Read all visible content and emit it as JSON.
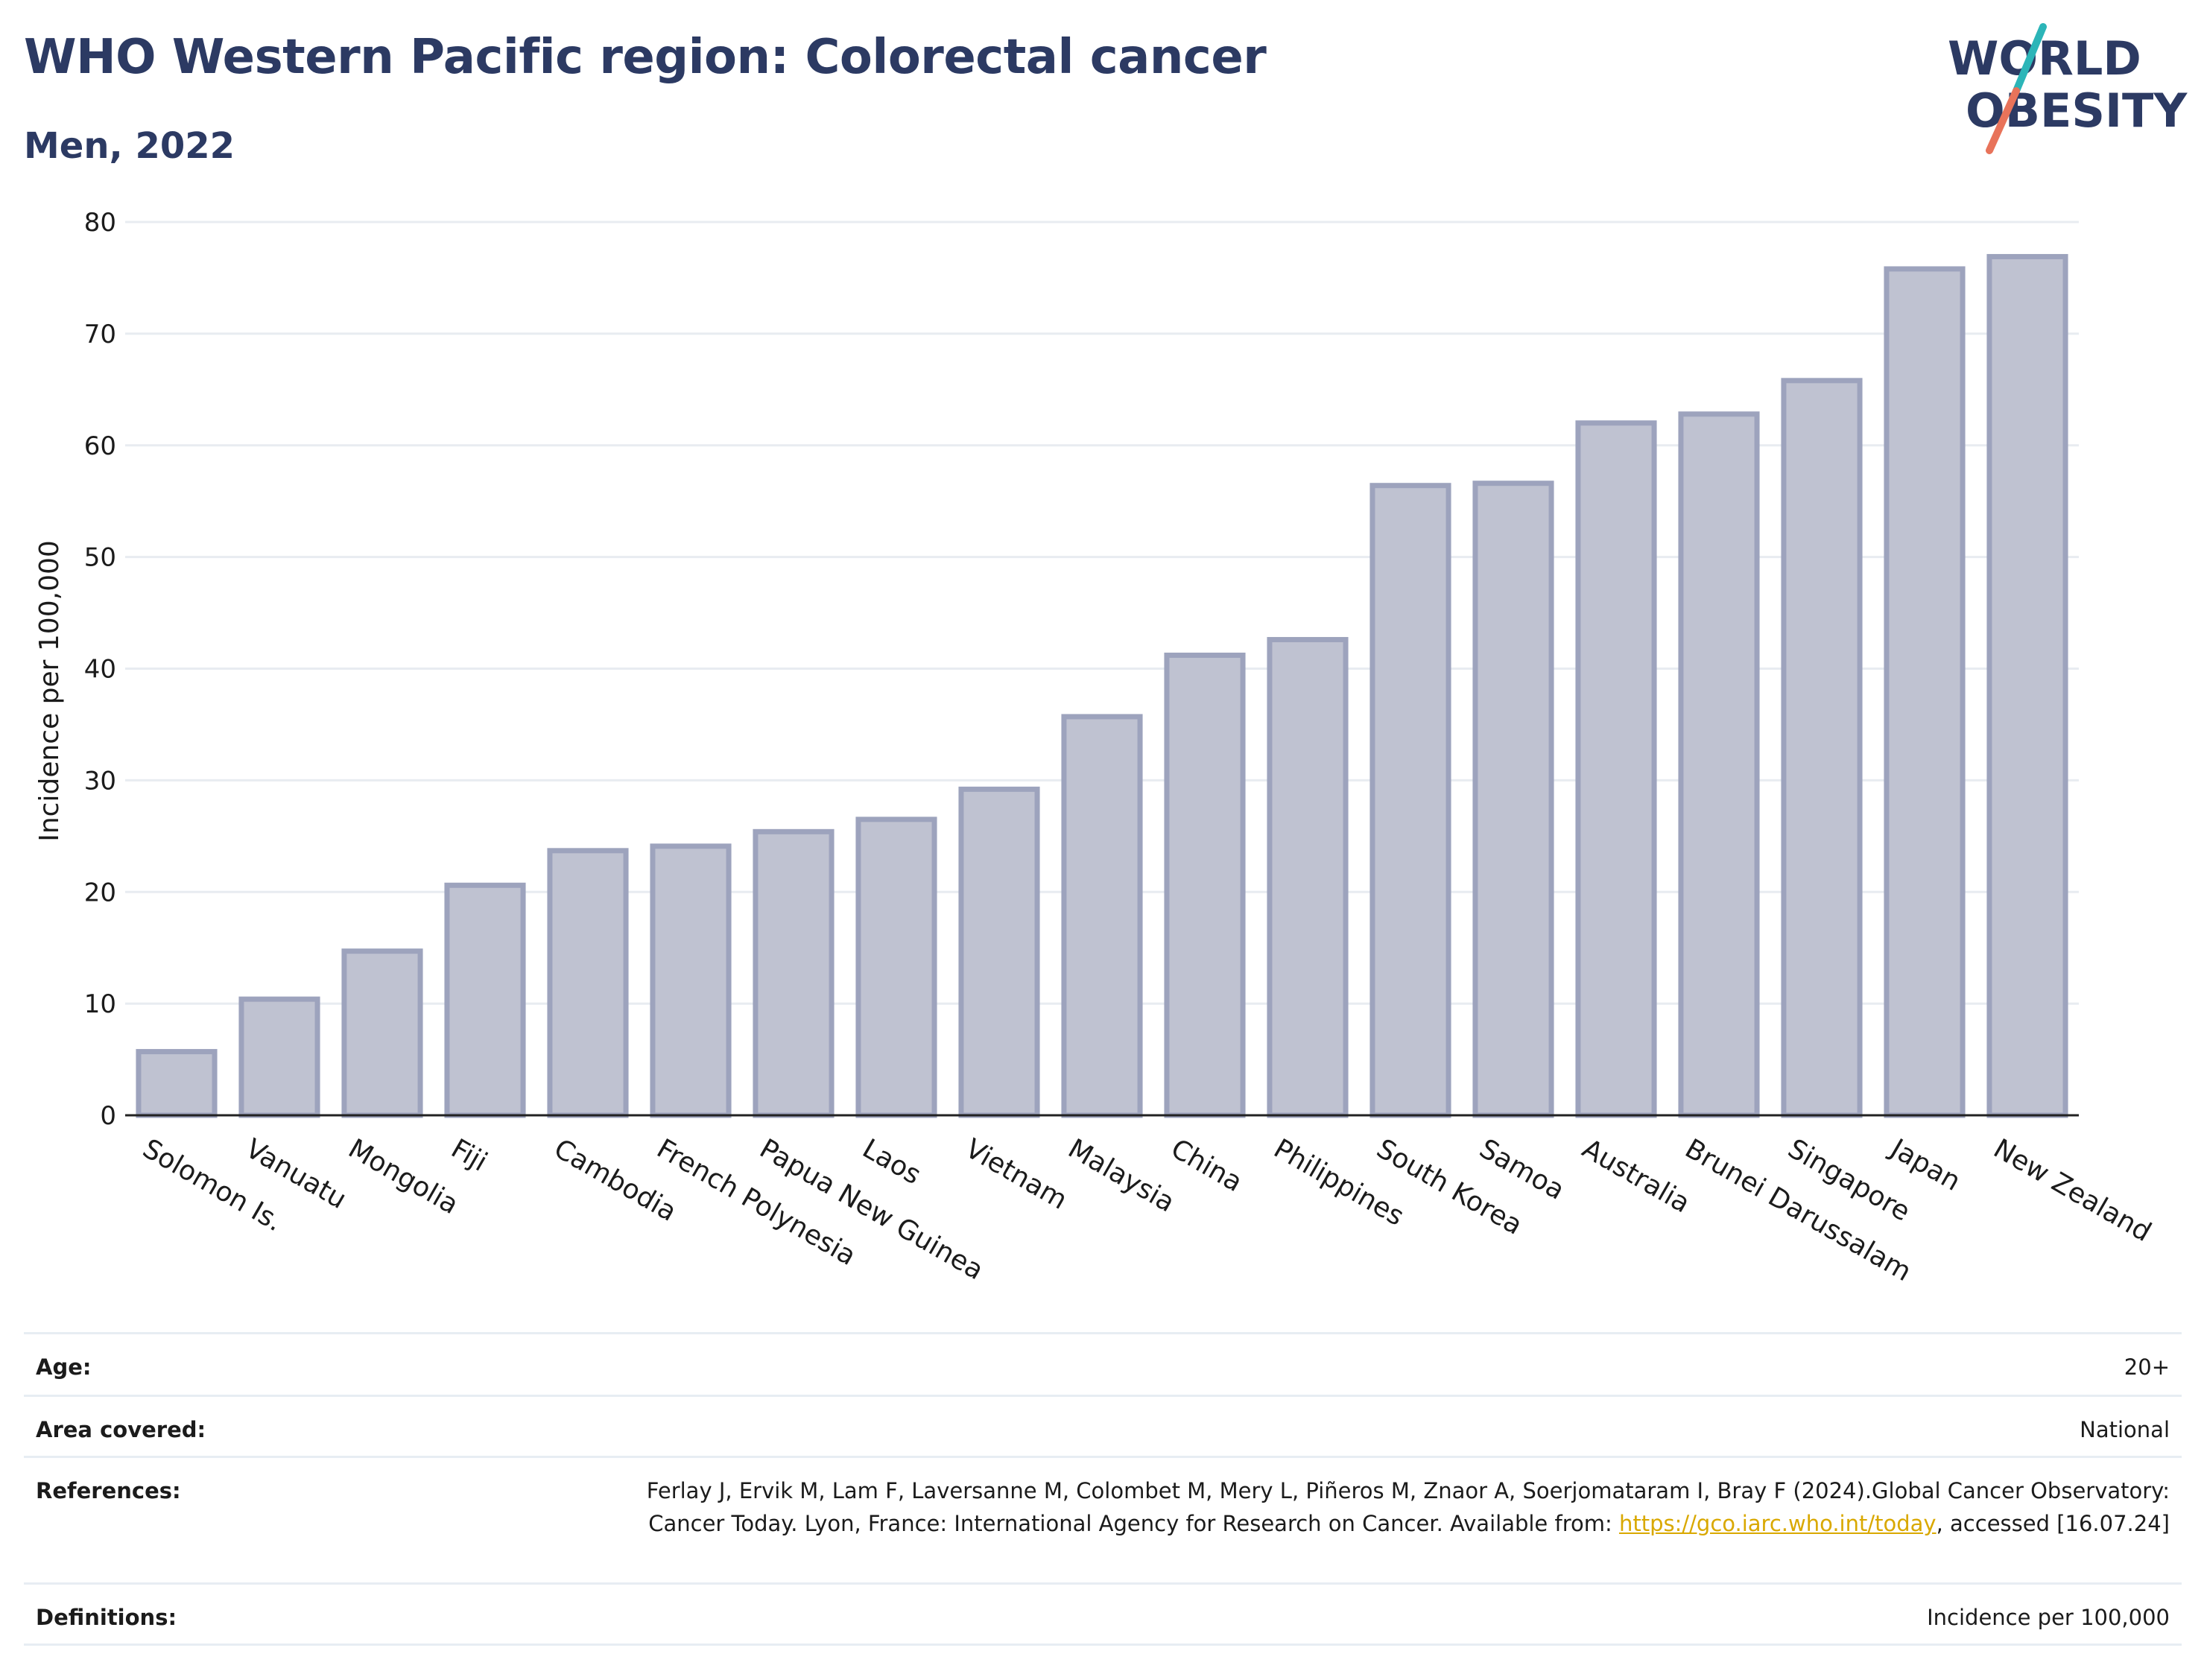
{
  "header": {
    "title": "WHO Western Pacific region: Colorectal cancer",
    "subtitle": "Men, 2022"
  },
  "logo": {
    "line1": "WORLD",
    "line2": "OBESITY",
    "colors": {
      "text": "#2c3a63",
      "slash_top": "#2cb5b8",
      "slash_bottom": "#e8735a"
    }
  },
  "chart_data": {
    "type": "bar",
    "title": "",
    "xlabel": "",
    "ylabel": "Incidence per 100,000",
    "ylim": [
      0,
      80
    ],
    "yticks": [
      0,
      10,
      20,
      30,
      40,
      50,
      60,
      70,
      80
    ],
    "grid": true,
    "categories": [
      "Solomon Is.",
      "Vanuatu",
      "Mongolia",
      "Fiji",
      "Cambodia",
      "French Polynesia",
      "Papua New Guinea",
      "Laos",
      "Vietnam",
      "Malaysia",
      "China",
      "Philippines",
      "South Korea",
      "Samoa",
      "Australia",
      "Brunei Darussalam",
      "Singapore",
      "Japan",
      "New Zealand"
    ],
    "values": [
      5.7,
      10.4,
      14.7,
      20.6,
      23.7,
      24.1,
      25.4,
      26.5,
      29.2,
      35.7,
      41.2,
      42.6,
      56.4,
      56.6,
      62.0,
      62.8,
      65.8,
      75.8,
      76.9
    ],
    "colors": {
      "bar_fill": "#bfc2d1",
      "bar_stroke": "#9da3bd",
      "grid": "#e8ecf1",
      "axis": "#222222"
    }
  },
  "info": {
    "age": {
      "label": "Age:",
      "value": "20+"
    },
    "area": {
      "label": "Area covered:",
      "value": "National"
    },
    "references": {
      "label": "References:",
      "text1": "Ferlay J, Ervik M, Lam F, Laversanne M, Colombet M, Mery L, Piñeros M, Znaor A, Soerjomataram I, Bray F (2024).Global Cancer Observatory: Cancer Today. Lyon, France: International Agency for Research on Cancer. Available from: ",
      "link": "https://gco.iarc.who.int/today",
      "text2": ", accessed [16.07.24]"
    },
    "definitions": {
      "label": "Definitions:",
      "value": "Incidence per 100,000"
    }
  }
}
